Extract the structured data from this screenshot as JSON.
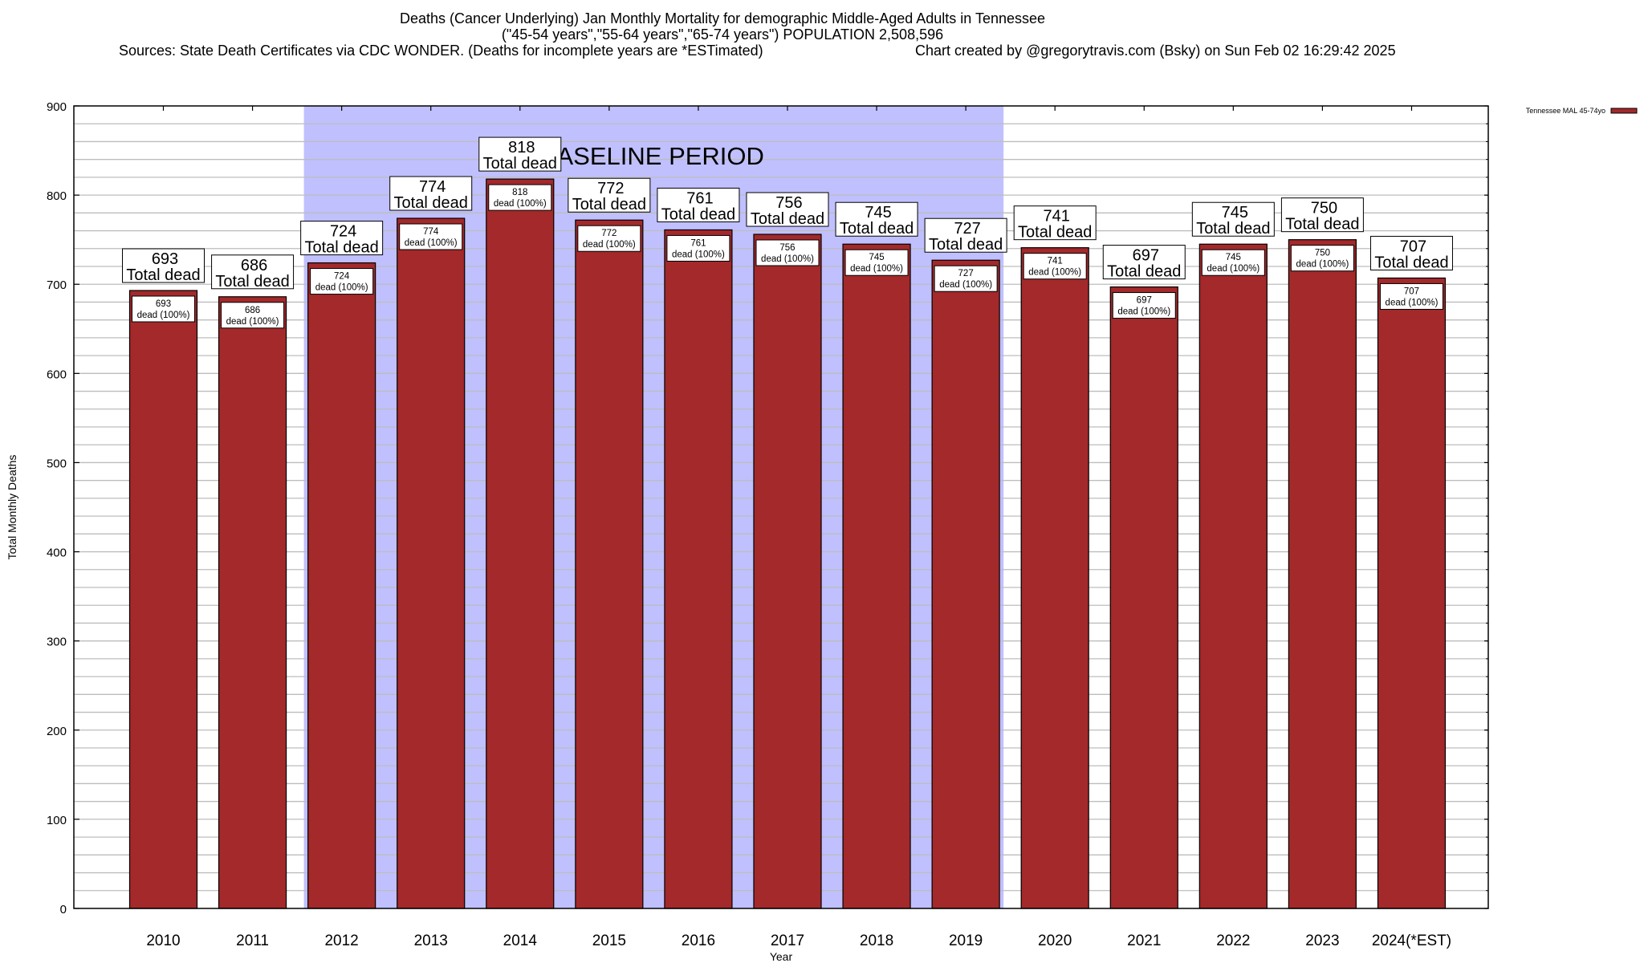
{
  "titles": {
    "line1": "Deaths (Cancer Underlying) Jan Monthly Mortality for demographic Middle-Aged Adults in Tennessee",
    "line2": "(\"45-54 years\",\"55-64 years\",\"65-74 years\") POPULATION 2,508,596",
    "line3_sources": "Sources: State Death Certificates via CDC WONDER. (Deaths for incomplete years are *ESTimated)",
    "line3_credit": "Chart created by @gregorytravis.com (Bsky) on Sun Feb 02 16:29:42 2025"
  },
  "chart_data": {
    "type": "bar",
    "title": "Deaths (Cancer Underlying) Jan Monthly Mortality for demographic Middle-Aged Adults in Tennessee",
    "xlabel": "Year",
    "ylabel": "Total Monthly Deaths",
    "ylim": [
      0,
      900
    ],
    "yticks": [
      0,
      100,
      200,
      300,
      400,
      500,
      600,
      700,
      800,
      900
    ],
    "minor_grid_step": 20,
    "grid": true,
    "legend_position": "top-right",
    "categories": [
      "2010",
      "2011",
      "2012",
      "2013",
      "2014",
      "2015",
      "2016",
      "2017",
      "2018",
      "2019",
      "2020",
      "2021",
      "2022",
      "2023",
      "2024(*EST)"
    ],
    "series": [
      {
        "name": "Tennessee MAL 45-74yo",
        "color": "#a3292b",
        "values": [
          693,
          686,
          724,
          774,
          818,
          772,
          761,
          756,
          745,
          727,
          741,
          697,
          745,
          750,
          707
        ]
      }
    ],
    "total_label_suffix": "Total dead",
    "inner_label_suffix": "dead (100%)",
    "annotation": {
      "text": "BASELINE PERIOD",
      "start_category": "2012",
      "end_category": "2019",
      "color": "#c0c0ff"
    }
  }
}
